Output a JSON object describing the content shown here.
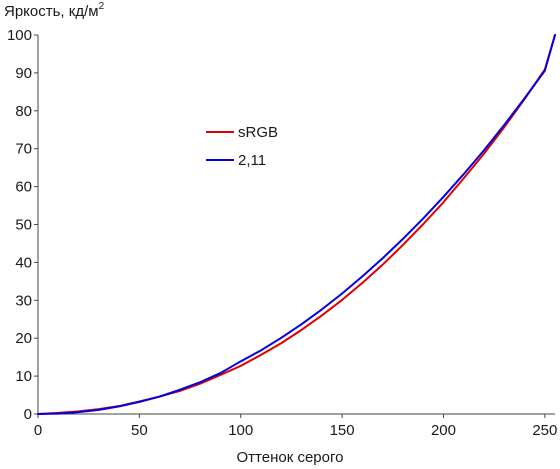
{
  "chart_data": {
    "type": "line",
    "ylabel_text": "Яркость, кд/м",
    "ylabel_sup": "2",
    "xlabel": "Оттенок серого",
    "xlim": [
      0,
      255
    ],
    "ylim": [
      0,
      100
    ],
    "xticks": [
      0,
      50,
      100,
      150,
      200,
      250
    ],
    "yticks": [
      0,
      10,
      20,
      30,
      40,
      50,
      60,
      70,
      80,
      90,
      100
    ],
    "grid": false,
    "legend_position": "upper-left-center",
    "series": [
      {
        "name": "sRGB",
        "color": "#e00000",
        "x": [
          0,
          10,
          20,
          30,
          40,
          50,
          60,
          70,
          80,
          90,
          100,
          110,
          120,
          130,
          140,
          150,
          160,
          170,
          180,
          190,
          200,
          210,
          220,
          230,
          240,
          250,
          255
        ],
        "y": [
          0,
          0.3,
          0.7,
          1.3,
          2.1,
          3.3,
          4.6,
          6.1,
          8.0,
          10.3,
          12.7,
          15.6,
          18.7,
          22.2,
          26.0,
          30.1,
          34.6,
          39.4,
          44.6,
          50.1,
          55.9,
          62.2,
          68.7,
          75.7,
          83.1,
          90.9,
          100
        ]
      },
      {
        "name": "2,11",
        "color": "#0000e0",
        "x": [
          0,
          10,
          20,
          30,
          40,
          50,
          60,
          70,
          80,
          90,
          100,
          110,
          120,
          130,
          140,
          150,
          160,
          170,
          180,
          190,
          200,
          210,
          220,
          230,
          240,
          250,
          255
        ],
        "y": [
          0,
          0.1,
          0.5,
          1.1,
          2.0,
          3.2,
          4.6,
          6.4,
          8.4,
          10.8,
          13.9,
          16.8,
          20.1,
          23.7,
          27.6,
          31.8,
          36.3,
          41.1,
          46.2,
          51.6,
          57.3,
          63.3,
          69.6,
          76.3,
          83.3,
          90.6,
          100
        ]
      }
    ]
  }
}
